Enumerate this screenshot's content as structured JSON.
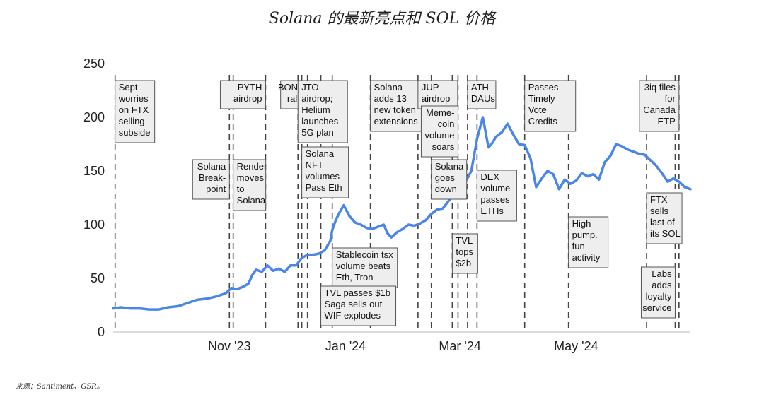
{
  "title": "Solana 的最新亮点和 SOL 价格",
  "source": "来源：Santiment、GSR。",
  "chart_data": {
    "type": "line",
    "title": "Solana 的最新亮点和 SOL 价格",
    "xlabel": "",
    "ylabel": "",
    "ylim": [
      0,
      250
    ],
    "yticks": [
      0,
      50,
      100,
      150,
      200,
      250
    ],
    "xlim": [
      "2023-09-01",
      "2024-06-30"
    ],
    "xticks": [
      {
        "date": "2023-11-01",
        "label": "Nov '23"
      },
      {
        "date": "2024-01-01",
        "label": "Jan '24"
      },
      {
        "date": "2024-03-01",
        "label": "Mar '24"
      },
      {
        "date": "2024-05-01",
        "label": "May '24"
      }
    ],
    "grid": false,
    "line_color": "#4a86e8",
    "series": [
      {
        "x": [
          "2023-09-01",
          "2023-09-05",
          "2023-09-10",
          "2023-09-15",
          "2023-09-20",
          "2023-09-25",
          "2023-09-30",
          "2023-10-05",
          "2023-10-10",
          "2023-10-15",
          "2023-10-20",
          "2023-10-25",
          "2023-10-30",
          "2023-11-02",
          "2023-11-05",
          "2023-11-08",
          "2023-11-11",
          "2023-11-13",
          "2023-11-15",
          "2023-11-18",
          "2023-11-21",
          "2023-11-24",
          "2023-11-27",
          "2023-11-30",
          "2023-12-03",
          "2023-12-06",
          "2023-12-09",
          "2023-12-12",
          "2023-12-15",
          "2023-12-18",
          "2023-12-21",
          "2023-12-24",
          "2023-12-25",
          "2023-12-27",
          "2023-12-29",
          "2023-12-31",
          "2024-01-03",
          "2024-01-06",
          "2024-01-09",
          "2024-01-12",
          "2024-01-15",
          "2024-01-18",
          "2024-01-21",
          "2024-01-23",
          "2024-01-25",
          "2024-01-28",
          "2024-01-31",
          "2024-02-03",
          "2024-02-06",
          "2024-02-09",
          "2024-02-12",
          "2024-02-15",
          "2024-02-18",
          "2024-02-21",
          "2024-02-24",
          "2024-02-27",
          "2024-03-01",
          "2024-03-04",
          "2024-03-07",
          "2024-03-10",
          "2024-03-13",
          "2024-03-16",
          "2024-03-18",
          "2024-03-20",
          "2024-03-23",
          "2024-03-26",
          "2024-03-29",
          "2024-04-01",
          "2024-04-04",
          "2024-04-07",
          "2024-04-10",
          "2024-04-13",
          "2024-04-16",
          "2024-04-19",
          "2024-04-22",
          "2024-04-25",
          "2024-04-28",
          "2024-05-01",
          "2024-05-04",
          "2024-05-07",
          "2024-05-10",
          "2024-05-13",
          "2024-05-16",
          "2024-05-19",
          "2024-05-22",
          "2024-05-25",
          "2024-05-28",
          "2024-05-31",
          "2024-06-03",
          "2024-06-06",
          "2024-06-09",
          "2024-06-12",
          "2024-06-15",
          "2024-06-18",
          "2024-06-21",
          "2024-06-24",
          "2024-06-27",
          "2024-06-30"
        ],
        "values": [
          22,
          23,
          22,
          22,
          21,
          21,
          23,
          24,
          27,
          30,
          31,
          33,
          36,
          41,
          40,
          42,
          45,
          53,
          58,
          56,
          62,
          57,
          59,
          56,
          62,
          62,
          69,
          72,
          72,
          73,
          76,
          85,
          95,
          105,
          112,
          118,
          108,
          102,
          100,
          97,
          96,
          98,
          100,
          92,
          88,
          93,
          96,
          100,
          99,
          101,
          104,
          110,
          114,
          115,
          122,
          128,
          133,
          140,
          150,
          180,
          200,
          172,
          176,
          182,
          186,
          194,
          184,
          175,
          174,
          162,
          135,
          143,
          150,
          147,
          133,
          142,
          138,
          141,
          148,
          145,
          147,
          142,
          158,
          164,
          175,
          173,
          170,
          168,
          166,
          165,
          160,
          155,
          148,
          140,
          143,
          140,
          135,
          133
        ]
      }
    ],
    "annotations": [
      {
        "lines": [
          "Sept",
          "worries",
          "on FTX",
          "selling",
          "subside"
        ],
        "date": "2023-09-02",
        "align": "left"
      },
      {
        "lines": [
          "Solana",
          "Break-",
          "point"
        ],
        "date": "2023-11-01",
        "align": "right"
      },
      {
        "lines": [
          "Render",
          "moves",
          "to",
          "Solana"
        ],
        "date": "2023-11-03",
        "align": "left"
      },
      {
        "lines": [
          "PYTH",
          "airdrop"
        ],
        "date": "2023-11-20",
        "align": "right"
      },
      {
        "lines": [
          "BONK",
          "rally"
        ],
        "date": "2023-12-12",
        "align": "right"
      },
      {
        "lines": [
          "JTO",
          "airdrop;",
          "Helium",
          "launches",
          "5G plan"
        ],
        "date": "2023-12-07",
        "align": "left"
      },
      {
        "lines": [
          "Solana",
          "NFT",
          "volumes",
          "Pass Eth"
        ],
        "date": "2023-12-09",
        "align": "left"
      },
      {
        "lines": [
          "Solana",
          "adds 13",
          "new token",
          "extensions"
        ],
        "date": "2024-01-14",
        "align": "left"
      },
      {
        "lines": [
          "Stablecoin tsx",
          "volume beats",
          "Eth, Tron"
        ],
        "date": "2023-12-25",
        "align": "left"
      },
      {
        "lines": [
          "TVL passes $1b",
          "Saga sells out",
          "WIF explodes"
        ],
        "date": "2023-12-19",
        "align": "left"
      },
      {
        "lines": [
          "JUP",
          "airdrop"
        ],
        "date": "2024-02-08",
        "align": "left"
      },
      {
        "lines": [
          "Solana",
          "goes",
          "down"
        ],
        "date": "2024-02-15",
        "align": "left"
      },
      {
        "lines": [
          "Meme-",
          "coin",
          "volume",
          "soars"
        ],
        "date": "2024-02-29",
        "align": "right"
      },
      {
        "lines": [
          "TVL",
          "tops",
          "$2b"
        ],
        "date": "2024-02-26",
        "align": "left"
      },
      {
        "lines": [
          "ATH",
          "DAUs"
        ],
        "date": "2024-03-05",
        "align": "left"
      },
      {
        "lines": [
          "DEX",
          "volume",
          "passes",
          "ETHs"
        ],
        "date": "2024-03-10",
        "align": "left"
      },
      {
        "lines": [
          "Passes",
          "Timely",
          "Vote",
          "Credits"
        ],
        "date": "2024-04-04",
        "align": "left"
      },
      {
        "lines": [
          "High",
          "pump.",
          "fun",
          "activity"
        ],
        "date": "2024-04-27",
        "align": "left"
      },
      {
        "lines": [
          "3iq files",
          "for",
          "Canada",
          "ETP"
        ],
        "date": "2024-06-24",
        "align": "right"
      },
      {
        "lines": [
          "FTX",
          "sells",
          "last of",
          "its SOL"
        ],
        "date": "2024-06-07",
        "align": "left"
      },
      {
        "lines": [
          "Labs",
          "adds",
          "loyalty",
          "service"
        ],
        "date": "2024-06-22",
        "align": "right"
      }
    ]
  }
}
